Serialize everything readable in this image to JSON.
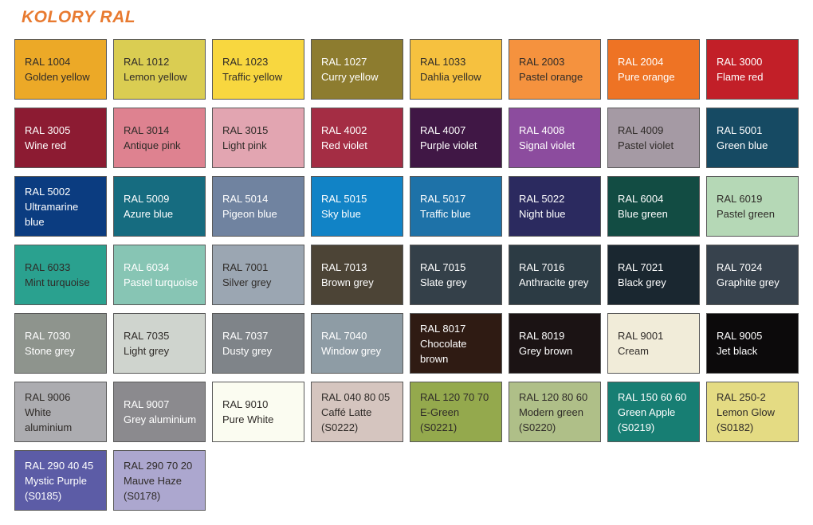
{
  "title": "KOLORY RAL",
  "colors": {
    "accent": "#E87A30",
    "swatch_border": "#595959",
    "dark_text": "#2F2B28",
    "light_text": "#FFFFFF",
    "background": "#FFFFFF"
  },
  "grid": {
    "columns": 8,
    "swatches": [
      {
        "code": "RAL 1004",
        "name": "Golden yellow",
        "bg": "#ECA927",
        "fg": "#2F2B28"
      },
      {
        "code": "RAL 1012",
        "name": "Lemon yellow",
        "bg": "#DACD52",
        "fg": "#2F2B28"
      },
      {
        "code": "RAL 1023",
        "name": "Traffic yellow",
        "bg": "#F8D73F",
        "fg": "#2F2B28"
      },
      {
        "code": "RAL 1027",
        "name": "Curry yellow",
        "bg": "#8D7C2F",
        "fg": "#FFFFFF"
      },
      {
        "code": "RAL 1033",
        "name": "Dahlia yellow",
        "bg": "#F6C13F",
        "fg": "#2F2B28"
      },
      {
        "code": "RAL 2003",
        "name": "Pastel orange",
        "bg": "#F5923E",
        "fg": "#2F2B28"
      },
      {
        "code": "RAL 2004",
        "name": "Pure orange",
        "bg": "#EE7324",
        "fg": "#FFFFFF"
      },
      {
        "code": "RAL 3000",
        "name": "Flame red",
        "bg": "#C21F28",
        "fg": "#FFFFFF"
      },
      {
        "code": "RAL 3005",
        "name": "Wine red",
        "bg": "#8C1B32",
        "fg": "#FFFFFF"
      },
      {
        "code": "RAL 3014",
        "name": "Antique pink",
        "bg": "#DE8290",
        "fg": "#2F2B28"
      },
      {
        "code": "RAL 3015",
        "name": "Light pink",
        "bg": "#E2A5B1",
        "fg": "#2F2B28"
      },
      {
        "code": "RAL 4002",
        "name": "Red violet",
        "bg": "#A42D44",
        "fg": "#FFFFFF"
      },
      {
        "code": "RAL 4007",
        "name": "Purple violet",
        "bg": "#401745",
        "fg": "#FFFFFF"
      },
      {
        "code": "RAL 4008",
        "name": "Signal violet",
        "bg": "#8C4C9E",
        "fg": "#FFFFFF"
      },
      {
        "code": "RAL 4009",
        "name": "Pastel violet",
        "bg": "#A59AA4",
        "fg": "#2F2B28"
      },
      {
        "code": "RAL 5001",
        "name": "Green blue",
        "bg": "#164A63",
        "fg": "#FFFFFF"
      },
      {
        "code": "RAL 5002",
        "name": "Ultramarine\nblue",
        "bg": "#0B3C80",
        "fg": "#FFFFFF"
      },
      {
        "code": "RAL 5009",
        "name": "Azure blue",
        "bg": "#166C80",
        "fg": "#FFFFFF"
      },
      {
        "code": "RAL 5014",
        "name": "Pigeon blue",
        "bg": "#7083A0",
        "fg": "#FFFFFF"
      },
      {
        "code": "RAL 5015",
        "name": "Sky blue",
        "bg": "#1183C6",
        "fg": "#FFFFFF"
      },
      {
        "code": "RAL 5017",
        "name": "Traffic blue",
        "bg": "#1E72A8",
        "fg": "#FFFFFF"
      },
      {
        "code": "RAL 5022",
        "name": "Night blue",
        "bg": "#2B2A5F",
        "fg": "#FFFFFF"
      },
      {
        "code": "RAL 6004",
        "name": "Blue green",
        "bg": "#124C43",
        "fg": "#FFFFFF"
      },
      {
        "code": "RAL 6019",
        "name": "Pastel green",
        "bg": "#B5D8B6",
        "fg": "#2F2B28"
      },
      {
        "code": "RAL 6033",
        "name": "Mint turquoise",
        "bg": "#2AA18F",
        "fg": "#2F2B28"
      },
      {
        "code": "RAL 6034",
        "name": "Pastel turquoise",
        "bg": "#87C5B4",
        "fg": "#FFFFFF"
      },
      {
        "code": "RAL 7001",
        "name": "Silver grey",
        "bg": "#9BA6B2",
        "fg": "#2F2B28"
      },
      {
        "code": "RAL 7013",
        "name": "Brown grey",
        "bg": "#4C4436",
        "fg": "#FFFFFF"
      },
      {
        "code": "RAL 7015",
        "name": "Slate grey",
        "bg": "#344049",
        "fg": "#FFFFFF"
      },
      {
        "code": "RAL 7016",
        "name": "Anthracite grey",
        "bg": "#2C3B44",
        "fg": "#FFFFFF"
      },
      {
        "code": "RAL 7021",
        "name": "Black grey",
        "bg": "#1A2730",
        "fg": "#FFFFFF"
      },
      {
        "code": "RAL 7024",
        "name": "Graphite grey",
        "bg": "#37424D",
        "fg": "#FFFFFF"
      },
      {
        "code": "RAL 7030",
        "name": "Stone grey",
        "bg": "#8E948D",
        "fg": "#FFFFFF"
      },
      {
        "code": "RAL 7035",
        "name": "Light grey",
        "bg": "#CFD4CE",
        "fg": "#2F2B28"
      },
      {
        "code": "RAL 7037",
        "name": "Dusty grey",
        "bg": "#7F8489",
        "fg": "#FFFFFF"
      },
      {
        "code": "RAL 7040",
        "name": "Window grey",
        "bg": "#8E9CA5",
        "fg": "#FFFFFF"
      },
      {
        "code": "RAL 8017",
        "name": "Chocolate\nbrown",
        "bg": "#2F1B13",
        "fg": "#FFFFFF"
      },
      {
        "code": "RAL 8019",
        "name": "Grey brown",
        "bg": "#1B1314",
        "fg": "#FFFFFF"
      },
      {
        "code": "RAL 9001",
        "name": "Cream",
        "bg": "#F1ECD9",
        "fg": "#2F2B28"
      },
      {
        "code": "RAL 9005",
        "name": "Jet black",
        "bg": "#0C0A0B",
        "fg": "#FFFFFF"
      },
      {
        "code": "RAL 9006",
        "name": "White\naluminium",
        "bg": "#ACACB0",
        "fg": "#2F2B28"
      },
      {
        "code": "RAL 9007",
        "name": "Grey aluminium",
        "bg": "#8B8A8E",
        "fg": "#FFFFFF"
      },
      {
        "code": "RAL 9010",
        "name": "Pure White",
        "bg": "#FBFCF1",
        "fg": "#2F2B28"
      },
      {
        "code": "RAL 040 80 05",
        "name": "Caffé Latte\n(S0222)",
        "bg": "#D5C5BF",
        "fg": "#2F2B28"
      },
      {
        "code": "RAL 120 70 70",
        "name": "E-Green\n(S0221)",
        "bg": "#94A94D",
        "fg": "#2F2B28"
      },
      {
        "code": "RAL 120 80 60",
        "name": "Modern green\n(S0220)",
        "bg": "#AFBF88",
        "fg": "#2F2B28"
      },
      {
        "code": "RAL 150 60 60",
        "name": "Green Apple\n(S0219)",
        "bg": "#177E73",
        "fg": "#FFFFFF"
      },
      {
        "code": "RAL 250-2",
        "name": "Lemon Glow\n(S0182)",
        "bg": "#E4DB83",
        "fg": "#2F2B28"
      },
      {
        "code": "RAL 290 40 45",
        "name": "Mystic Purple\n(S0185)",
        "bg": "#5C5CA6",
        "fg": "#FFFFFF"
      },
      {
        "code": "RAL 290 70 20",
        "name": "Mauve Haze\n(S0178)",
        "bg": "#ACA7CF",
        "fg": "#2F2B28"
      }
    ]
  }
}
